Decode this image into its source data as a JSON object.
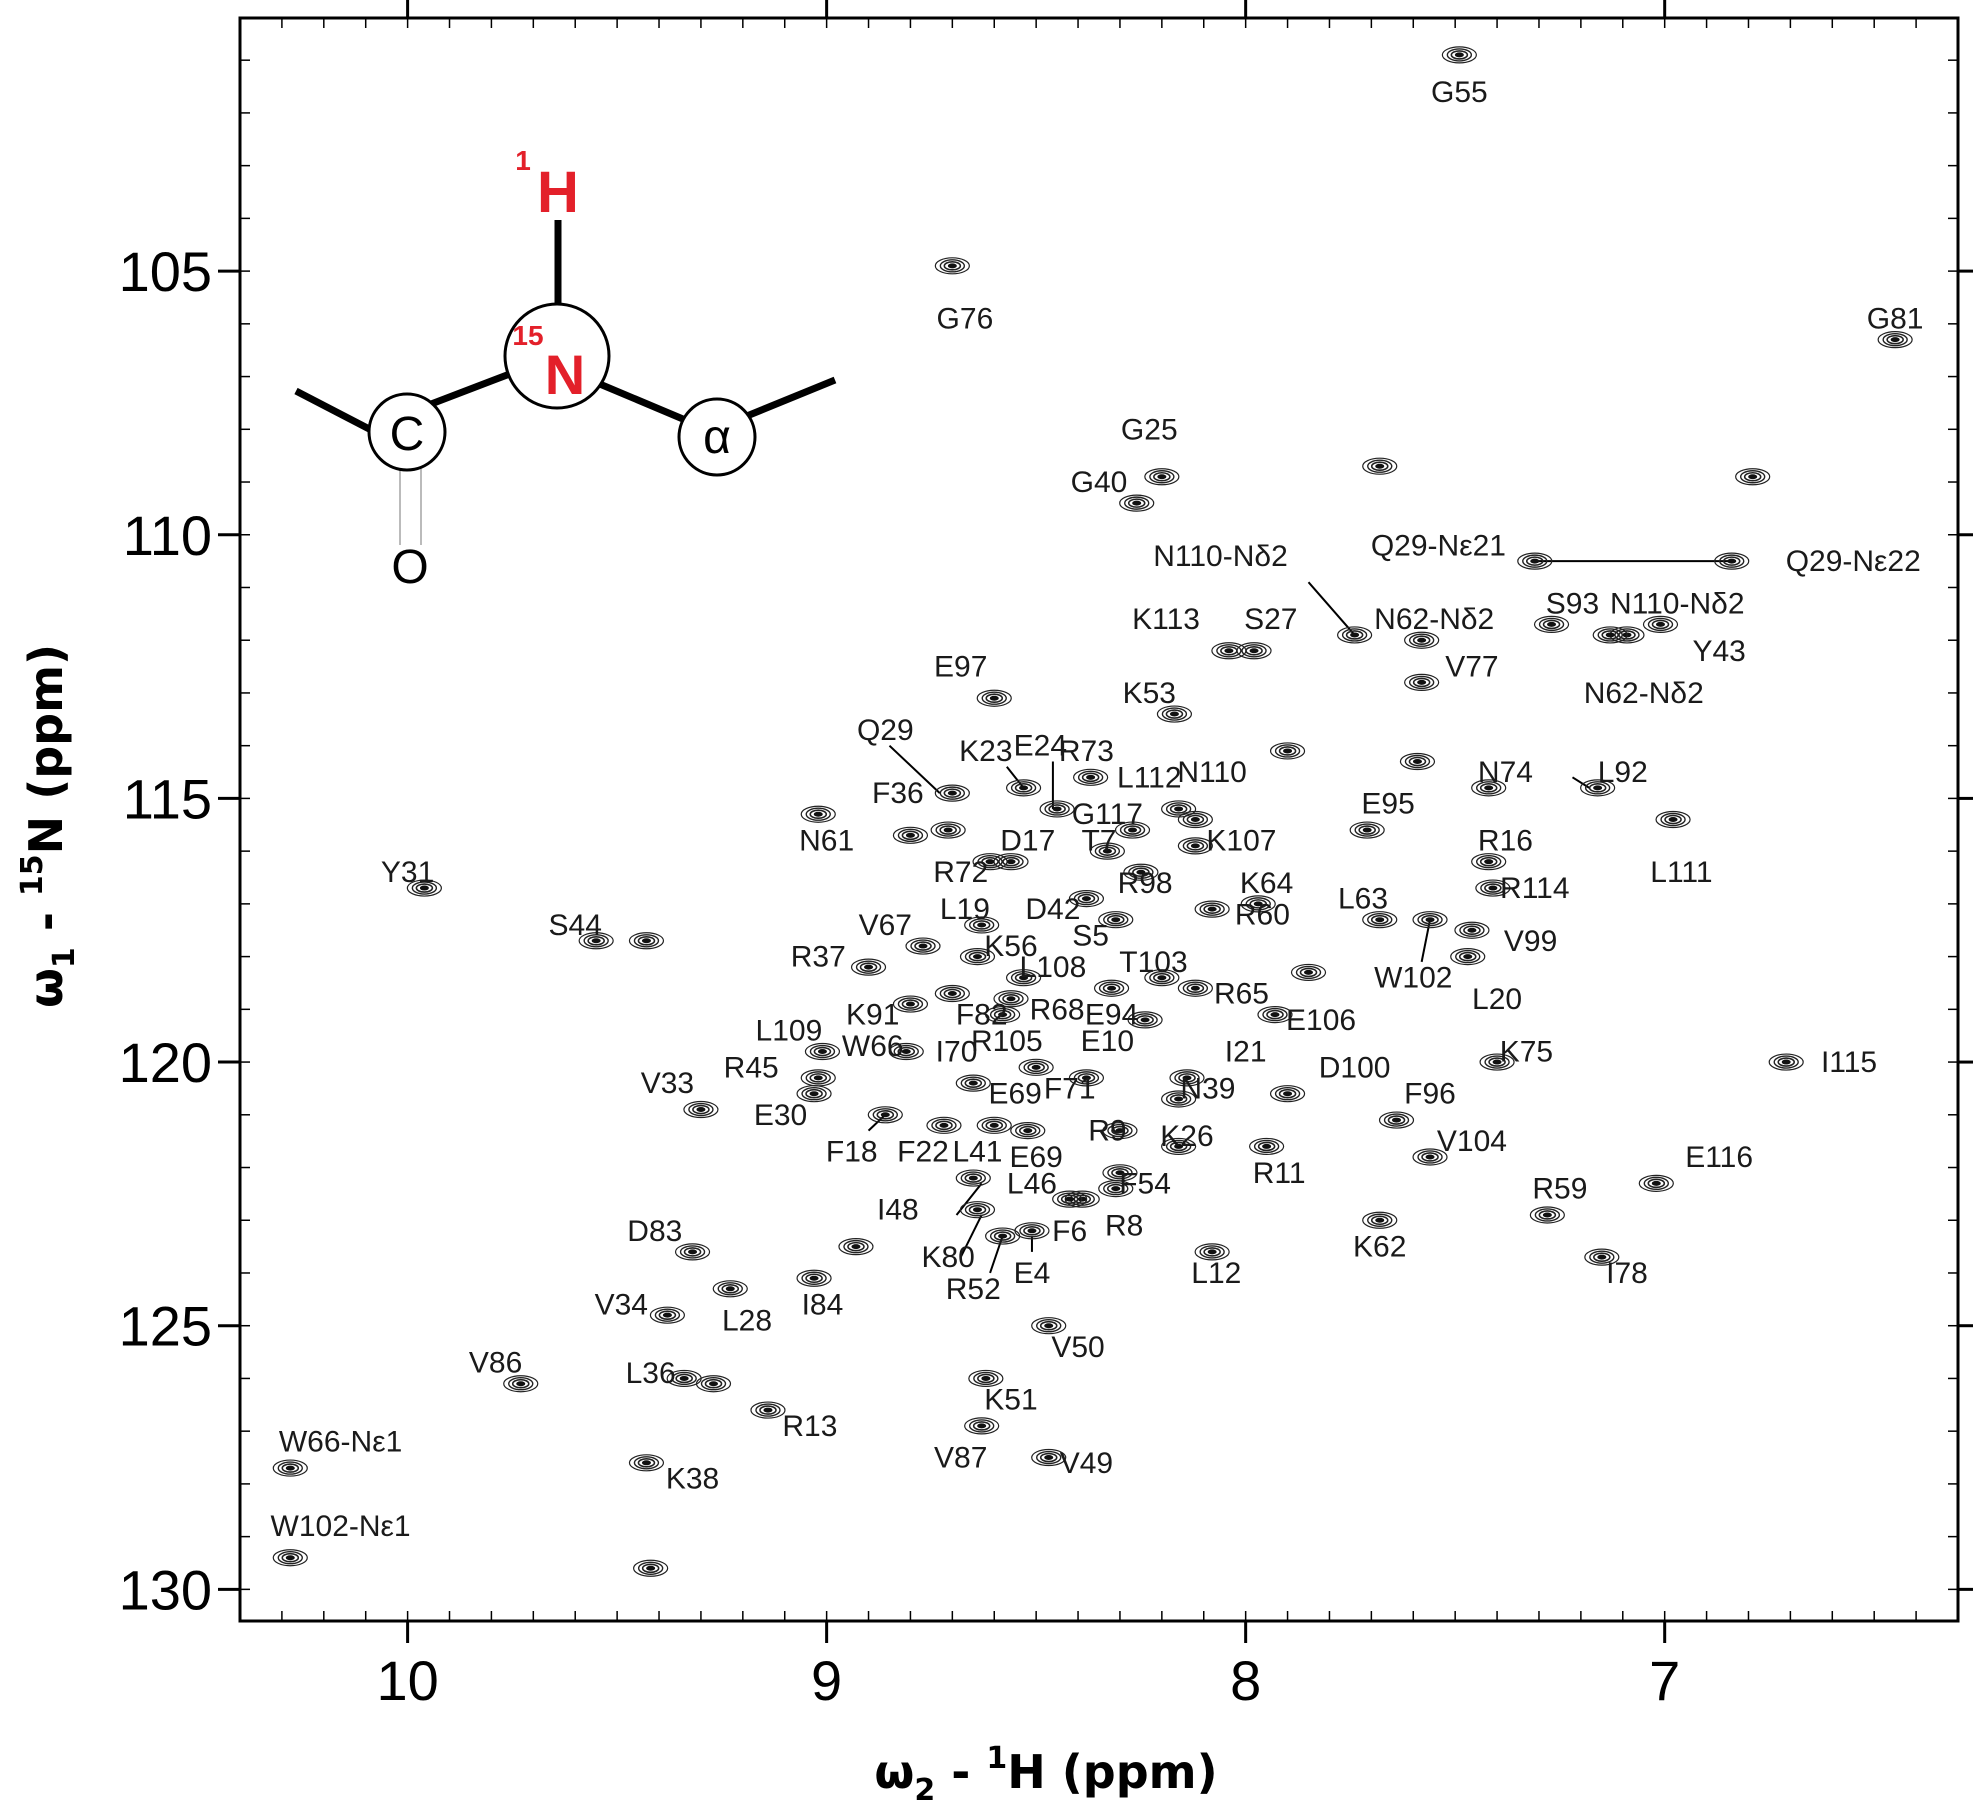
{
  "chart_data": {
    "type": "scatter",
    "title": "",
    "xlabel": {
      "prefix": "ω",
      "sub": "2",
      "mid": " - ",
      "sup": "1",
      "suffix": "H (ppm)"
    },
    "ylabel": {
      "prefix": "ω",
      "sub": "1",
      "mid": " - ",
      "sup": "15",
      "suffix": "N  (ppm)"
    },
    "x_reversed": true,
    "xlim": [
      10.4,
      6.3
    ],
    "ylim": [
      100.2,
      130.6
    ],
    "xticks": [
      10,
      9,
      8,
      7
    ],
    "yticks": [
      105,
      110,
      115,
      120,
      125,
      130
    ],
    "xtick_labels": [
      "10",
      "9",
      "8",
      "7"
    ],
    "ytick_labels": [
      "105",
      "110",
      "115",
      "120",
      "125",
      "130"
    ],
    "grid": false,
    "structure_inset": {
      "h_mass": "1",
      "h_label": "H",
      "n_mass": "15",
      "n_label": "N",
      "c_label": "C",
      "alpha_label": "α",
      "o_label": "O",
      "highlight_color": "#e3202a"
    },
    "peaks": [
      {
        "label": "G55",
        "x": 7.49,
        "y": 100.9,
        "lx": 7.49,
        "ly": 101.6
      },
      {
        "label": "G76",
        "x": 8.7,
        "y": 104.9,
        "lx": 8.67,
        "ly": 105.9
      },
      {
        "label": "G81",
        "x": 6.45,
        "y": 106.3,
        "lx": 6.45,
        "ly": 105.9
      },
      {
        "label": "G25",
        "x": 8.2,
        "y": 108.9,
        "lx": 8.23,
        "ly": 108.0
      },
      {
        "label": "G40",
        "x": 8.26,
        "y": 109.4,
        "lx": 8.35,
        "ly": 109.0
      },
      {
        "label": "",
        "x": 7.68,
        "y": 108.7
      },
      {
        "label": "",
        "x": 6.79,
        "y": 108.9
      },
      {
        "label": "N110-Nδ2",
        "x": 7.74,
        "y": 111.9,
        "lx": 8.06,
        "ly": 110.4
      },
      {
        "label": "Q29-Nε21",
        "x": 7.31,
        "y": 110.5,
        "lx": 7.54,
        "ly": 110.2
      },
      {
        "label": "Q29-Nε22",
        "x": 6.84,
        "y": 110.5,
        "lx": 6.55,
        "ly": 110.5
      },
      {
        "label": "K113",
        "x": 8.04,
        "y": 112.2,
        "lx": 8.19,
        "ly": 111.6
      },
      {
        "label": "S27",
        "x": 7.98,
        "y": 112.2,
        "lx": 7.94,
        "ly": 111.6
      },
      {
        "label": "N62-Nδ2",
        "x": 7.58,
        "y": 112.0,
        "lx": 7.55,
        "ly": 111.6
      },
      {
        "label": "S93",
        "x": 7.27,
        "y": 111.7,
        "lx": 7.22,
        "ly": 111.3
      },
      {
        "label": "N110-Nδ2",
        "x": 7.09,
        "y": 111.9,
        "lx": 6.97,
        "ly": 111.3
      },
      {
        "label": "Y43",
        "x": 7.01,
        "y": 111.7,
        "lx": 6.87,
        "ly": 112.2
      },
      {
        "label": "N62-Nδ2",
        "x": 7.13,
        "y": 111.9,
        "lx": 7.05,
        "ly": 113.0
      },
      {
        "label": "E97",
        "x": 8.6,
        "y": 113.1,
        "lx": 8.68,
        "ly": 112.5
      },
      {
        "label": "V77",
        "x": 7.58,
        "y": 112.8,
        "lx": 7.46,
        "ly": 112.5
      },
      {
        "label": "K53",
        "x": 8.17,
        "y": 113.4,
        "lx": 8.23,
        "ly": 113.0
      },
      {
        "label": "Q29",
        "x": 8.7,
        "y": 114.9,
        "lx": 8.86,
        "ly": 113.7
      },
      {
        "label": "K23",
        "x": 8.53,
        "y": 114.8,
        "lx": 8.62,
        "ly": 114.1
      },
      {
        "label": "E24",
        "x": 8.45,
        "y": 115.2,
        "lx": 8.49,
        "ly": 114.0
      },
      {
        "label": "R73",
        "x": 8.37,
        "y": 114.6,
        "lx": 8.38,
        "ly": 114.1
      },
      {
        "label": "",
        "x": 7.9,
        "y": 114.1
      },
      {
        "label": "",
        "x": 7.59,
        "y": 114.3
      },
      {
        "label": "N74",
        "x": 7.42,
        "y": 114.8,
        "lx": 7.38,
        "ly": 114.5
      },
      {
        "label": "L92",
        "x": 7.16,
        "y": 114.8,
        "lx": 7.1,
        "ly": 114.5
      },
      {
        "label": "L111",
        "x": 6.98,
        "y": 115.4,
        "lx": 6.96,
        "ly": 116.4
      },
      {
        "label": "F36",
        "x": 8.71,
        "y": 115.6,
        "lx": 8.83,
        "ly": 114.9
      },
      {
        "label": "L112",
        "x": 8.16,
        "y": 115.2,
        "lx": 8.23,
        "ly": 114.6
      },
      {
        "label": "N110",
        "x": 8.12,
        "y": 115.4,
        "lx": 8.08,
        "ly": 114.5
      },
      {
        "label": "E95",
        "x": 7.71,
        "y": 115.6,
        "lx": 7.66,
        "ly": 115.1
      },
      {
        "label": "N61",
        "x": 8.8,
        "y": 115.7,
        "lx": 9.0,
        "ly": 115.8
      },
      {
        "label": "",
        "x": 9.02,
        "y": 115.3
      },
      {
        "label": "G117",
        "x": 8.27,
        "y": 115.6,
        "lx": 8.33,
        "ly": 115.3
      },
      {
        "label": "D17",
        "x": 8.56,
        "y": 116.2,
        "lx": 8.52,
        "ly": 115.8
      },
      {
        "label": "T7",
        "x": 8.33,
        "y": 116.0,
        "lx": 8.35,
        "ly": 115.8
      },
      {
        "label": "K107",
        "x": 8.12,
        "y": 115.9,
        "lx": 8.01,
        "ly": 115.8
      },
      {
        "label": "R16",
        "x": 7.42,
        "y": 116.2,
        "lx": 7.38,
        "ly": 115.8
      },
      {
        "label": "R72",
        "x": 8.61,
        "y": 116.2,
        "lx": 8.68,
        "ly": 116.4
      },
      {
        "label": "R98",
        "x": 8.25,
        "y": 116.4,
        "lx": 8.24,
        "ly": 116.6
      },
      {
        "label": "K64",
        "x": 7.97,
        "y": 117.0,
        "lx": 7.95,
        "ly": 116.6
      },
      {
        "label": "R114",
        "x": 7.41,
        "y": 116.7,
        "lx": 7.31,
        "ly": 116.7
      },
      {
        "label": "Y31",
        "x": 9.96,
        "y": 116.7,
        "lx": 10.0,
        "ly": 116.4
      },
      {
        "label": "L19",
        "x": 8.63,
        "y": 117.4,
        "lx": 8.67,
        "ly": 117.1
      },
      {
        "label": "D42",
        "x": 8.38,
        "y": 116.9,
        "lx": 8.46,
        "ly": 117.1
      },
      {
        "label": "R60",
        "x": 8.08,
        "y": 117.1,
        "lx": 7.96,
        "ly": 117.2
      },
      {
        "label": "L63",
        "x": 7.68,
        "y": 117.3,
        "lx": 7.72,
        "ly": 116.9
      },
      {
        "label": "V67",
        "x": 8.77,
        "y": 117.8,
        "lx": 8.86,
        "ly": 117.4
      },
      {
        "label": "S5",
        "x": 8.31,
        "y": 117.3,
        "lx": 8.37,
        "ly": 117.6
      },
      {
        "label": "S44",
        "x": 9.55,
        "y": 117.7,
        "lx": 9.6,
        "ly": 117.4
      },
      {
        "label": "",
        "x": 9.43,
        "y": 117.7
      },
      {
        "label": "W102",
        "x": 7.56,
        "y": 117.3,
        "lx": 7.6,
        "ly": 118.4
      },
      {
        "label": "V99",
        "x": 7.46,
        "y": 117.5,
        "lx": 7.32,
        "ly": 117.7
      },
      {
        "label": "K56",
        "x": 8.64,
        "y": 118.0,
        "lx": 8.56,
        "ly": 117.8
      },
      {
        "label": "R37",
        "x": 8.9,
        "y": 118.2,
        "lx": 9.02,
        "ly": 118.0
      },
      {
        "label": "T103",
        "x": 8.2,
        "y": 118.4,
        "lx": 8.22,
        "ly": 118.1
      },
      {
        "label": "L108",
        "x": 8.53,
        "y": 118.4,
        "lx": 8.46,
        "ly": 118.2
      },
      {
        "label": "L20",
        "x": 7.47,
        "y": 118.0,
        "lx": 7.4,
        "ly": 118.8
      },
      {
        "label": "R65",
        "x": 8.12,
        "y": 118.6,
        "lx": 8.01,
        "ly": 118.7
      },
      {
        "label": "",
        "x": 7.85,
        "y": 118.3
      },
      {
        "label": "K91",
        "x": 8.8,
        "y": 118.9,
        "lx": 8.89,
        "ly": 119.1
      },
      {
        "label": "F82",
        "x": 8.7,
        "y": 118.7,
        "lx": 8.63,
        "ly": 119.1
      },
      {
        "label": "R68",
        "x": 8.56,
        "y": 118.8,
        "lx": 8.45,
        "ly": 119.0
      },
      {
        "label": "E94",
        "x": 8.32,
        "y": 118.6,
        "lx": 8.32,
        "ly": 119.1
      },
      {
        "label": "L109",
        "x": 9.01,
        "y": 119.8,
        "lx": 9.09,
        "ly": 119.4
      },
      {
        "label": "E106",
        "x": 7.93,
        "y": 119.1,
        "lx": 7.82,
        "ly": 119.2
      },
      {
        "label": "R105",
        "x": 8.58,
        "y": 119.1,
        "lx": 8.57,
        "ly": 119.6
      },
      {
        "label": "E10",
        "x": 8.24,
        "y": 119.2,
        "lx": 8.33,
        "ly": 119.6
      },
      {
        "label": "W66",
        "x": 8.81,
        "y": 119.8,
        "lx": 8.89,
        "ly": 119.7
      },
      {
        "label": "I70",
        "x": 8.65,
        "y": 120.4,
        "lx": 8.69,
        "ly": 119.8
      },
      {
        "label": "I21",
        "x": 8.14,
        "y": 120.3,
        "lx": 8.0,
        "ly": 119.8
      },
      {
        "label": "K75",
        "x": 7.4,
        "y": 120.0,
        "lx": 7.33,
        "ly": 119.8
      },
      {
        "label": "I115",
        "x": 6.71,
        "y": 120.0,
        "lx": 6.56,
        "ly": 120.0
      },
      {
        "label": "R45",
        "x": 9.02,
        "y": 120.3,
        "lx": 9.18,
        "ly": 120.1
      },
      {
        "label": "E69",
        "x": 8.5,
        "y": 120.1,
        "lx": 8.55,
        "ly": 120.6
      },
      {
        "label": "F71",
        "x": 8.38,
        "y": 120.3,
        "lx": 8.42,
        "ly": 120.5
      },
      {
        "label": "D100",
        "x": 7.9,
        "y": 120.6,
        "lx": 7.74,
        "ly": 120.1
      },
      {
        "label": "N39",
        "x": 8.16,
        "y": 120.7,
        "lx": 8.09,
        "ly": 120.5
      },
      {
        "label": "V33",
        "x": 9.3,
        "y": 120.9,
        "lx": 9.38,
        "ly": 120.4
      },
      {
        "label": "E30",
        "x": 9.03,
        "y": 120.6,
        "lx": 9.11,
        "ly": 121.0
      },
      {
        "label": "F96",
        "x": 7.64,
        "y": 121.1,
        "lx": 7.56,
        "ly": 120.6
      },
      {
        "label": "F18",
        "x": 8.86,
        "y": 121.0,
        "lx": 8.94,
        "ly": 121.7
      },
      {
        "label": "F22",
        "x": 8.72,
        "y": 121.2,
        "lx": 8.77,
        "ly": 121.7
      },
      {
        "label": "L41",
        "x": 8.6,
        "y": 121.2,
        "lx": 8.64,
        "ly": 121.7
      },
      {
        "label": "E69",
        "x": 8.52,
        "y": 121.3,
        "lx": 8.5,
        "ly": 121.8
      },
      {
        "label": "R9",
        "x": 8.3,
        "y": 121.3,
        "lx": 8.33,
        "ly": 121.3
      },
      {
        "label": "K26",
        "x": 8.16,
        "y": 121.6,
        "lx": 8.14,
        "ly": 121.4
      },
      {
        "label": "V104",
        "x": 7.56,
        "y": 121.8,
        "lx": 7.46,
        "ly": 121.5
      },
      {
        "label": "R11",
        "x": 7.95,
        "y": 121.6,
        "lx": 7.92,
        "ly": 122.1
      },
      {
        "label": "E116",
        "x": 7.02,
        "y": 122.3,
        "lx": 6.87,
        "ly": 121.8
      },
      {
        "label": "I48",
        "x": 8.65,
        "y": 122.2,
        "lx": 8.83,
        "ly": 122.8
      },
      {
        "label": "L46",
        "x": 8.39,
        "y": 122.6,
        "lx": 8.51,
        "ly": 122.3
      },
      {
        "label": "F54",
        "x": 8.3,
        "y": 122.1,
        "lx": 8.24,
        "ly": 122.3
      },
      {
        "label": "R59",
        "x": 7.28,
        "y": 122.9,
        "lx": 7.25,
        "ly": 122.4
      },
      {
        "label": "K80",
        "x": 8.64,
        "y": 122.8,
        "lx": 8.71,
        "ly": 123.7
      },
      {
        "label": "F6",
        "x": 8.42,
        "y": 122.6,
        "lx": 8.42,
        "ly": 123.2
      },
      {
        "label": "R8",
        "x": 8.31,
        "y": 122.4,
        "lx": 8.29,
        "ly": 123.1
      },
      {
        "label": "K62",
        "x": 7.68,
        "y": 123.0,
        "lx": 7.68,
        "ly": 123.5
      },
      {
        "label": "D83",
        "x": 9.32,
        "y": 123.6,
        "lx": 9.41,
        "ly": 123.2
      },
      {
        "label": "R52",
        "x": 8.58,
        "y": 123.3,
        "lx": 8.65,
        "ly": 124.3
      },
      {
        "label": "E4",
        "x": 8.51,
        "y": 123.2,
        "lx": 8.51,
        "ly": 124.0
      },
      {
        "label": "I78",
        "x": 7.15,
        "y": 123.7,
        "lx": 7.09,
        "ly": 124.0
      },
      {
        "label": "L12",
        "x": 8.08,
        "y": 123.6,
        "lx": 8.07,
        "ly": 124.0
      },
      {
        "label": "I84",
        "x": 9.03,
        "y": 124.1,
        "lx": 9.01,
        "ly": 124.6
      },
      {
        "label": "",
        "x": 8.93,
        "y": 123.5
      },
      {
        "label": "V34",
        "x": 9.38,
        "y": 124.8,
        "lx": 9.49,
        "ly": 124.6
      },
      {
        "label": "L28",
        "x": 9.23,
        "y": 124.3,
        "lx": 9.19,
        "ly": 124.9
      },
      {
        "label": "V50",
        "x": 8.47,
        "y": 125.0,
        "lx": 8.4,
        "ly": 125.4
      },
      {
        "label": "V86",
        "x": 9.73,
        "y": 126.1,
        "lx": 9.79,
        "ly": 125.7
      },
      {
        "label": "L36",
        "x": 9.34,
        "y": 126.0,
        "lx": 9.42,
        "ly": 125.9
      },
      {
        "label": "",
        "x": 9.27,
        "y": 126.1
      },
      {
        "label": "K51",
        "x": 8.62,
        "y": 126.0,
        "lx": 8.56,
        "ly": 126.4
      },
      {
        "label": "R13",
        "x": 9.14,
        "y": 126.6,
        "lx": 9.04,
        "ly": 126.9
      },
      {
        "label": "V87",
        "x": 8.63,
        "y": 126.9,
        "lx": 8.68,
        "ly": 127.5
      },
      {
        "label": "W66-Nε1",
        "x": 10.28,
        "y": 127.7,
        "lx": 10.16,
        "ly": 127.2
      },
      {
        "label": "K38",
        "x": 9.43,
        "y": 127.6,
        "lx": 9.32,
        "ly": 127.9
      },
      {
        "label": "V49",
        "x": 8.47,
        "y": 127.5,
        "lx": 8.38,
        "ly": 127.6
      },
      {
        "label": "W102-Nε1",
        "x": 10.28,
        "y": 129.4,
        "lx": 10.16,
        "ly": 128.8
      },
      {
        "label": "",
        "x": 9.42,
        "y": 129.6
      }
    ],
    "annotation_lines": [
      {
        "x1": 7.31,
        "y1": 110.5,
        "x2": 6.84,
        "y2": 110.5
      },
      {
        "x1": 7.85,
        "y1": 110.9,
        "x2": 7.74,
        "y2": 111.9
      },
      {
        "x1": 8.85,
        "y1": 114.0,
        "x2": 8.73,
        "y2": 114.9
      },
      {
        "x1": 8.57,
        "y1": 114.4,
        "x2": 8.53,
        "y2": 114.8
      },
      {
        "x1": 8.46,
        "y1": 114.3,
        "x2": 8.46,
        "y2": 115.2
      },
      {
        "x1": 8.69,
        "y1": 122.9,
        "x2": 8.63,
        "y2": 122.3
      },
      {
        "x1": 8.68,
        "y1": 123.7,
        "x2": 8.63,
        "y2": 122.9
      },
      {
        "x1": 8.61,
        "y1": 124.0,
        "x2": 8.58,
        "y2": 123.3
      },
      {
        "x1": 8.51,
        "y1": 123.6,
        "x2": 8.51,
        "y2": 123.3
      },
      {
        "x1": 7.58,
        "y1": 118.1,
        "x2": 7.56,
        "y2": 117.3
      },
      {
        "x1": 8.9,
        "y1": 121.3,
        "x2": 8.86,
        "y2": 121.0
      },
      {
        "x1": 7.22,
        "y1": 114.6,
        "x2": 7.18,
        "y2": 114.8
      }
    ]
  }
}
